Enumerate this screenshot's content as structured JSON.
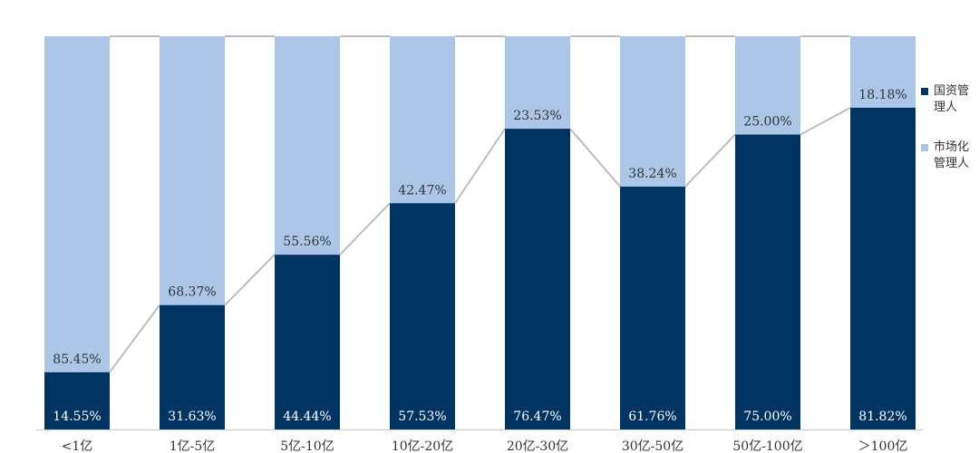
{
  "colors": {
    "state_owned": "#003462",
    "market": "#abc6e7",
    "line": "#bdbdbd",
    "axis": "#c8c8c8",
    "label_dark": "#ffffff",
    "label_light": "#333333"
  },
  "chart_data": {
    "type": "bar",
    "stacked": true,
    "categories": [
      "<1亿",
      "1亿-5亿",
      "5亿-10亿",
      "10亿-20亿",
      "20亿-30亿",
      "30亿-50亿",
      "50亿-100亿",
      "＞100亿"
    ],
    "series": [
      {
        "name": "国资管理人",
        "values": [
          14.55,
          31.63,
          44.44,
          57.53,
          76.47,
          61.76,
          75.0,
          81.82
        ],
        "labels": [
          "14.55%",
          "31.63%",
          "44.44%",
          "57.53%",
          "76.47%",
          "61.76%",
          "75.00%",
          "81.82%"
        ]
      },
      {
        "name": "市场化管理人",
        "values": [
          85.45,
          68.37,
          55.56,
          42.47,
          23.53,
          38.24,
          25.0,
          18.18
        ],
        "labels": [
          "85.45%",
          "68.37%",
          "55.56%",
          "42.47%",
          "23.53%",
          "38.24%",
          "25.00%",
          "18.18%"
        ]
      }
    ],
    "ylim": [
      0,
      100
    ],
    "legend_position": "right",
    "grid": false,
    "connector_lines": true
  },
  "legend": {
    "items": [
      {
        "label": "国资管理人",
        "color": "#003462"
      },
      {
        "label": "市场化管理人",
        "color": "#abc6e7"
      }
    ]
  }
}
